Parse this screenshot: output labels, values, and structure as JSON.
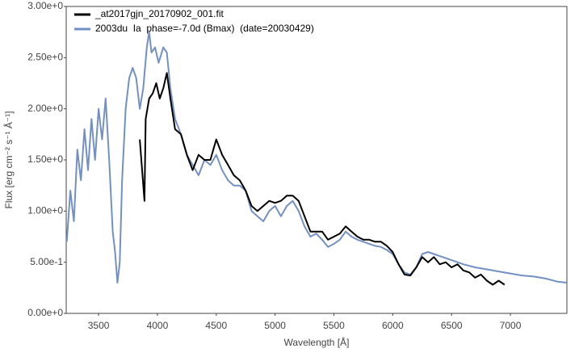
{
  "chart_data": {
    "type": "line",
    "xlabel": "Wavelength [Å]",
    "ylabel": "Flux [erg cm⁻² s⁻¹ Å⁻¹]",
    "xlim": [
      3225,
      7480
    ],
    "ylim": [
      0,
      3
    ],
    "xticks": [
      3500,
      4000,
      4500,
      5000,
      5500,
      6000,
      6500,
      7000
    ],
    "yticks": [
      {
        "value": 0,
        "label": "0.00e+0"
      },
      {
        "value": 0.5,
        "label": "5.00e-1"
      },
      {
        "value": 1,
        "label": "1.00e+0"
      },
      {
        "value": 1.5,
        "label": "1.50e+0"
      },
      {
        "value": 2,
        "label": "2.00e+0"
      },
      {
        "value": 2.5,
        "label": "2.50e+0"
      },
      {
        "value": 3,
        "label": "3.00e+0"
      }
    ],
    "grid": false,
    "legend": "upper left",
    "series": [
      {
        "name": "_at2017gjn_20170902_001.fit",
        "color": "#000000",
        "x": [
          3850,
          3870,
          3890,
          3900,
          3930,
          3960,
          3990,
          4020,
          4050,
          4080,
          4110,
          4150,
          4200,
          4250,
          4300,
          4350,
          4400,
          4450,
          4500,
          4550,
          4600,
          4650,
          4700,
          4750,
          4800,
          4850,
          4900,
          4950,
          5000,
          5050,
          5100,
          5150,
          5200,
          5250,
          5300,
          5350,
          5400,
          5450,
          5500,
          5550,
          5600,
          5650,
          5700,
          5750,
          5800,
          5850,
          5900,
          5950,
          6000,
          6050,
          6100,
          6150,
          6200,
          6250,
          6300,
          6350,
          6400,
          6450,
          6500,
          6550,
          6600,
          6650,
          6700,
          6750,
          6800,
          6850,
          6900,
          6950
        ],
        "values": [
          1.7,
          1.4,
          1.1,
          1.9,
          2.1,
          2.15,
          2.25,
          2.1,
          2.2,
          2.35,
          2.1,
          1.8,
          1.75,
          1.55,
          1.4,
          1.55,
          1.5,
          1.5,
          1.7,
          1.55,
          1.45,
          1.35,
          1.3,
          1.2,
          1.05,
          1.0,
          1.05,
          1.1,
          1.08,
          1.1,
          1.15,
          1.15,
          1.1,
          0.95,
          0.8,
          0.8,
          0.8,
          0.72,
          0.75,
          0.78,
          0.85,
          0.8,
          0.75,
          0.72,
          0.72,
          0.7,
          0.7,
          0.66,
          0.6,
          0.48,
          0.38,
          0.37,
          0.45,
          0.55,
          0.5,
          0.55,
          0.48,
          0.5,
          0.45,
          0.48,
          0.42,
          0.4,
          0.35,
          0.38,
          0.32,
          0.28,
          0.32,
          0.28
        ]
      },
      {
        "name": "2003du  Ia  phase=-7.0d (Bmax)  (date=20030429)",
        "color": "#7390c4",
        "x": [
          3230,
          3260,
          3290,
          3320,
          3350,
          3380,
          3410,
          3440,
          3470,
          3500,
          3530,
          3560,
          3590,
          3620,
          3640,
          3660,
          3680,
          3700,
          3730,
          3760,
          3790,
          3820,
          3850,
          3880,
          3910,
          3930,
          3950,
          3980,
          4010,
          4050,
          4080,
          4110,
          4150,
          4200,
          4250,
          4300,
          4350,
          4400,
          4450,
          4500,
          4550,
          4600,
          4650,
          4700,
          4750,
          4800,
          4850,
          4900,
          4950,
          5000,
          5050,
          5100,
          5150,
          5200,
          5250,
          5300,
          5350,
          5400,
          5450,
          5500,
          5550,
          5600,
          5650,
          5700,
          5750,
          5800,
          5850,
          5900,
          5950,
          6000,
          6050,
          6100,
          6150,
          6200,
          6250,
          6300,
          6350,
          6400,
          6450,
          6500,
          6600,
          6700,
          6800,
          6900,
          7000,
          7100,
          7200,
          7300,
          7400,
          7480
        ],
        "values": [
          0.7,
          1.2,
          0.9,
          1.6,
          1.3,
          1.8,
          1.4,
          1.9,
          1.5,
          2.0,
          1.7,
          2.1,
          1.5,
          0.8,
          0.6,
          0.3,
          0.5,
          1.3,
          2.0,
          2.3,
          2.4,
          2.3,
          2.0,
          2.2,
          2.6,
          2.75,
          2.55,
          2.6,
          2.45,
          2.6,
          2.55,
          2.2,
          1.9,
          1.75,
          1.55,
          1.45,
          1.35,
          1.5,
          1.45,
          1.55,
          1.4,
          1.3,
          1.25,
          1.25,
          1.2,
          1.0,
          0.95,
          0.9,
          1.0,
          1.05,
          0.95,
          1.05,
          1.1,
          1.0,
          0.85,
          0.75,
          0.78,
          0.72,
          0.65,
          0.68,
          0.72,
          0.8,
          0.75,
          0.72,
          0.7,
          0.68,
          0.66,
          0.65,
          0.62,
          0.58,
          0.48,
          0.4,
          0.38,
          0.45,
          0.58,
          0.6,
          0.58,
          0.56,
          0.54,
          0.52,
          0.48,
          0.45,
          0.43,
          0.41,
          0.39,
          0.37,
          0.36,
          0.34,
          0.31,
          0.3
        ]
      }
    ]
  }
}
